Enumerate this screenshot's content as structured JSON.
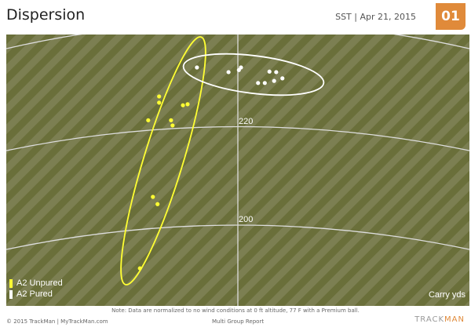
{
  "header": {
    "title": "Dispersion",
    "session": "SST | Apr 21, 2015",
    "badge": "01"
  },
  "chart_data": {
    "type": "scatter",
    "xlabel": "Carry yds",
    "carry_ticks": [
      220,
      200
    ],
    "grid": true,
    "legend_position": "bottom-left",
    "series": [
      {
        "name": "A2 Unpured",
        "color": "#ffff33",
        "points": [
          {
            "side": -15.2,
            "carry": 224.4
          },
          {
            "side": -15.2,
            "carry": 223.2
          },
          {
            "side": -17.3,
            "carry": 219.8
          },
          {
            "side": -12.9,
            "carry": 219.8
          },
          {
            "side": -12.6,
            "carry": 218.8
          },
          {
            "side": -10.6,
            "carry": 222.7
          },
          {
            "side": -9.7,
            "carry": 222.9
          },
          {
            "side": -16.4,
            "carry": 205.0
          },
          {
            "side": -15.5,
            "carry": 203.6
          },
          {
            "side": -18.9,
            "carry": 191.2
          }
        ]
      },
      {
        "name": "A2 Pured",
        "color": "#ffffff",
        "points": [
          {
            "side": -7.9,
            "carry": 230.0
          },
          {
            "side": -1.8,
            "carry": 229.1
          },
          {
            "side": 0.2,
            "carry": 229.5
          },
          {
            "side": 0.6,
            "carry": 230.0
          },
          {
            "side": 6.1,
            "carry": 229.2
          },
          {
            "side": 7.4,
            "carry": 229.1
          },
          {
            "side": 8.6,
            "carry": 227.9
          },
          {
            "side": 7.0,
            "carry": 227.4
          },
          {
            "side": 5.2,
            "carry": 227.0
          },
          {
            "side": 3.9,
            "carry": 227.0
          }
        ]
      }
    ]
  },
  "note": "Note: Data are normalized to no wind conditions at 0 ft altitude, 77 F with a Premium ball.",
  "footer": {
    "copyright": "© 2015 TrackMan | MyTrackMan.com",
    "report": "Multi Group Report",
    "logo_a": "TRACK",
    "logo_b": "MAN"
  }
}
